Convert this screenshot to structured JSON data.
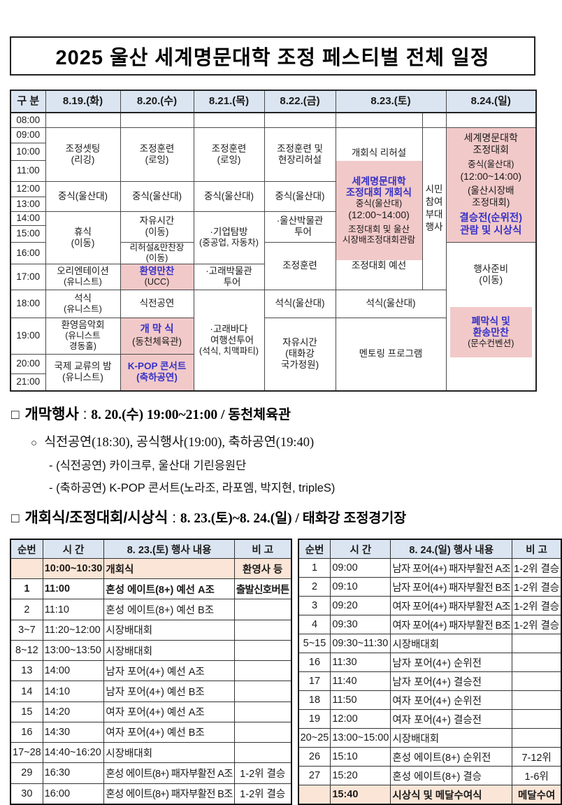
{
  "title": "2025 울산 세계명문대학 조정 페스티벌 전체 일정",
  "colors": {
    "header_bg": "#dbe5f1",
    "highlight_pink": "#f2c9c9",
    "highlight_peach": "#fbe5d6",
    "accent_blue_text": "#3632c8"
  },
  "main": {
    "corner": "구 분",
    "days": [
      "8.19.(화)",
      "8.20.(수)",
      "8.21.(목)",
      "8.22.(금)",
      "8.23.(토)",
      "8.24.(일)"
    ],
    "times": [
      "08:00",
      "09:00",
      "10:00",
      "11:00",
      "12:00",
      "13:00",
      "14:00",
      "15:00",
      "16:00",
      "17:00",
      "18:00",
      "19:00",
      "20:00",
      "21:00"
    ],
    "d1": {
      "setting": [
        "조정셋팅",
        "(리깅)"
      ],
      "lunch": "중식(울산대)",
      "rest": [
        "휴식",
        "(이동)"
      ],
      "orientation": [
        "오리엔테이션",
        "(유니스트)"
      ],
      "dinner": [
        "석식",
        "(유니스트)"
      ],
      "concert": [
        "환영음악회",
        "(유니스트",
        "경동홀)"
      ],
      "night": [
        "국제 교류의 밤",
        "(유니스트)"
      ]
    },
    "d2": {
      "training": [
        "조정훈련",
        "(로잉)"
      ],
      "lunch": "중식(울산대)",
      "free": [
        "자유시간",
        "(이동)"
      ],
      "rehearsal": [
        "리허설&만찬장",
        "(이동)"
      ],
      "banquet": [
        "환영만찬",
        "(UCC)"
      ],
      "preshow": "식전공연",
      "opening": [
        "개 막 식",
        "(동천체육관)"
      ],
      "kpop": [
        "K-POP 콘서트",
        "(축하공연)"
      ]
    },
    "d3": {
      "training": [
        "조정훈련",
        "(로잉)"
      ],
      "lunch": "중식(울산대)",
      "company": [
        "·기업탐방",
        "(중공업, 자동차)"
      ],
      "museum": [
        "·고래박물관",
        "투어"
      ],
      "cruise": [
        "·고래바다",
        "여행선투어",
        "(석식, 치맥파티)"
      ]
    },
    "d4": {
      "training": [
        "조정훈련 및",
        "현장리허설"
      ],
      "lunch": "중식(울산대)",
      "museum": [
        "·울산박물관",
        "투어"
      ],
      "training2": "조정훈련",
      "dinner": "석식(울산대)",
      "free": [
        "자유시간",
        "(태화강",
        "국가정원)"
      ]
    },
    "d5": {
      "rehearsal": "개회식 리허설",
      "opening": [
        "세계명문대학",
        "조정대회 개회식"
      ],
      "lunch": [
        "중식(울산대)",
        "(12:00~14:00)"
      ],
      "watch": [
        "조정대회 및 울산",
        "시장배조정대회관람"
      ],
      "prelim": "조정대회 예선",
      "citizen": [
        "시민",
        "참여",
        "부대",
        "행사"
      ],
      "dinner": "석식(울산대)",
      "mentoring": "멘토링 프로그램"
    },
    "d6": {
      "compete": [
        "세계명문대학",
        "조정대회"
      ],
      "lunch": [
        "중식(울산대)",
        "(12:00~14:00)"
      ],
      "mayor": [
        "(울산시장배",
        "조정대회)"
      ],
      "final": [
        "결승전(순위전)",
        "관람 및 시상식"
      ],
      "prep": [
        "행사준비",
        "(이동)"
      ],
      "closing": [
        "폐막식 및",
        "환송만찬",
        "(문수컨벤션)"
      ]
    }
  },
  "notes": {
    "h1_bullet": "□",
    "h1_title": "개막행사",
    "h1_colon": ":",
    "h1_detail": "8. 20.(수) 19:00~21:00 / 동천체육관",
    "sub_bullet": "○",
    "sub_text": "식전공연(18:30), 공식행사(19:00), 축하공연(19:40)",
    "dash1": "- (식전공연) 카이크루, 울산대 기린응원단",
    "dash2": "- (축하공연) K-POP 콘서트(노라조, 라포엠, 박지현, tripleS)",
    "h2_bullet": "□",
    "h2_title": "개회식/조정대회/시상식",
    "h2_colon": ":",
    "h2_detail": "8. 23.(토)~8. 24.(일) / 태화강 조정경기장"
  },
  "detail_tables": [
    {
      "headers": [
        "순번",
        "시 간",
        "8. 23.(토) 행사 내용",
        "비 고"
      ],
      "rows": [
        {
          "no": "",
          "time": "10:00~10:30",
          "event": "개회식",
          "note": "환영사 등",
          "hl": true
        },
        {
          "no": "1",
          "time": "11:00",
          "event": "혼성 에이트(8+) 예선 A조",
          "note": "출발신호버튼",
          "bold": true,
          "ncond": true
        },
        {
          "no": "2",
          "time": "11:10",
          "event": "혼성 에이트(8+) 예선 B조",
          "note": ""
        },
        {
          "no": "3~7",
          "time": "11:20~12:00",
          "event": "시장배대회",
          "note": ""
        },
        {
          "no": "8~12",
          "time": "13:00~13:50",
          "event": "시장배대회",
          "note": ""
        },
        {
          "no": "13",
          "time": "14:00",
          "event": "남자 포어(4+) 예선 A조",
          "note": ""
        },
        {
          "no": "14",
          "time": "14:10",
          "event": "남자 포어(4+) 예선 B조",
          "note": ""
        },
        {
          "no": "15",
          "time": "14:20",
          "event": "여자 포어(4+) 예선 A조",
          "note": ""
        },
        {
          "no": "16",
          "time": "14:30",
          "event": "여자 포어(4+) 예선 B조",
          "note": ""
        },
        {
          "no": "17~28",
          "time": "14:40~16:20",
          "event": "시장배대회",
          "note": ""
        },
        {
          "no": "29",
          "time": "16:30",
          "event": "혼성 에이트(8+) 패자부활전 A조",
          "note": "1-2위 결승",
          "cond": true
        },
        {
          "no": "30",
          "time": "16:00",
          "event": "혼성 에이트(8+) 패자부활전 B조",
          "note": "1-2위 결승",
          "cond": true
        }
      ]
    },
    {
      "headers": [
        "순번",
        "시 간",
        "8. 24.(일) 행사 내용",
        "비 고"
      ],
      "rows": [
        {
          "no": "1",
          "time": "09:00",
          "event": "남자 포어(4+) 패자부활전 A조",
          "note": "1-2위 결승",
          "cond": true
        },
        {
          "no": "2",
          "time": "09:10",
          "event": "남자 포어(4+) 패자부활전 B조",
          "note": "1-2위 결승",
          "cond": true
        },
        {
          "no": "3",
          "time": "09:20",
          "event": "여자 포어(4+) 패자부활전 A조",
          "note": "1-2위 결승",
          "cond": true
        },
        {
          "no": "4",
          "time": "09:30",
          "event": "여자 포어(4+) 패자부활전 B조",
          "note": "1-2위 결승",
          "cond": true
        },
        {
          "no": "5~15",
          "time": "09:30~11:30",
          "event": "시장배대회",
          "note": ""
        },
        {
          "no": "16",
          "time": "11:30",
          "event": "남자 포어(4+) 순위전",
          "note": ""
        },
        {
          "no": "17",
          "time": "11:40",
          "event": "남자 포어(4+) 결승전",
          "note": ""
        },
        {
          "no": "18",
          "time": "11:50",
          "event": "여자 포어(4+) 순위전",
          "note": ""
        },
        {
          "no": "19",
          "time": "12:00",
          "event": "여자 포어(4+) 결승전",
          "note": ""
        },
        {
          "no": "20~25",
          "time": "13:00~15:00",
          "event": "시장배대회",
          "note": ""
        },
        {
          "no": "26",
          "time": "15:10",
          "event": "혼성 에이트(8+) 순위전",
          "note": "7-12위"
        },
        {
          "no": "27",
          "time": "15:20",
          "event": "혼성 에이트(8+) 결승",
          "note": "1-6위"
        },
        {
          "no": "",
          "time": "15:40",
          "event": "시상식 및 메달수여식",
          "note": "메달수여",
          "hl": true
        }
      ]
    }
  ]
}
